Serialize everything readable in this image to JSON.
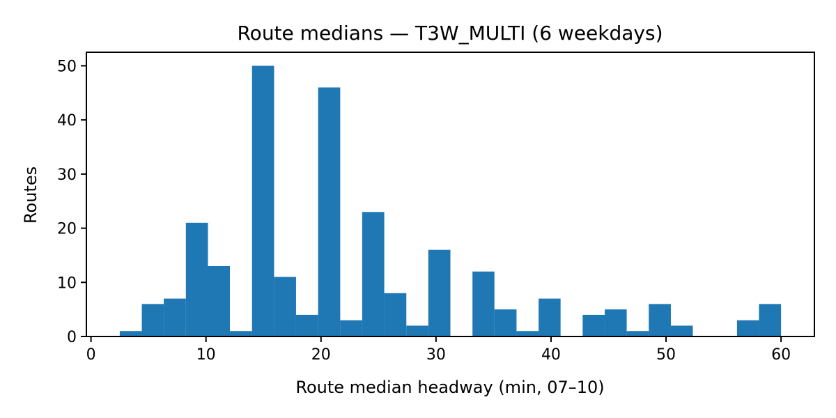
{
  "chart_data": {
    "type": "bar",
    "subtype": "histogram",
    "title": "Route medians — T3W_MULTI (6 weekdays)",
    "xlabel": "Route median headway (min, 07–10)",
    "ylabel": "Routes",
    "xlim": [
      -0.4,
      62.9
    ],
    "ylim": [
      0,
      52.5
    ],
    "xticks": [
      0,
      10,
      20,
      30,
      40,
      50,
      60
    ],
    "yticks": [
      0,
      10,
      20,
      30,
      40,
      50
    ],
    "grid": false,
    "legend": "none",
    "bar_color": "#1f77b4",
    "bin_edges": [
      2.5,
      4.42,
      6.33,
      8.25,
      10.17,
      12.08,
      14.0,
      15.92,
      17.83,
      19.75,
      21.67,
      23.58,
      25.5,
      27.42,
      29.33,
      31.25,
      33.17,
      35.08,
      37.0,
      38.92,
      40.83,
      42.75,
      44.67,
      46.58,
      48.5,
      50.42,
      52.33,
      54.25,
      56.17,
      58.08,
      60.0
    ],
    "counts": [
      1,
      6,
      7,
      21,
      13,
      1,
      50,
      11,
      4,
      46,
      3,
      23,
      8,
      2,
      16,
      0,
      12,
      5,
      1,
      7,
      0,
      4,
      5,
      1,
      6,
      2,
      0,
      0,
      3,
      6
    ]
  }
}
